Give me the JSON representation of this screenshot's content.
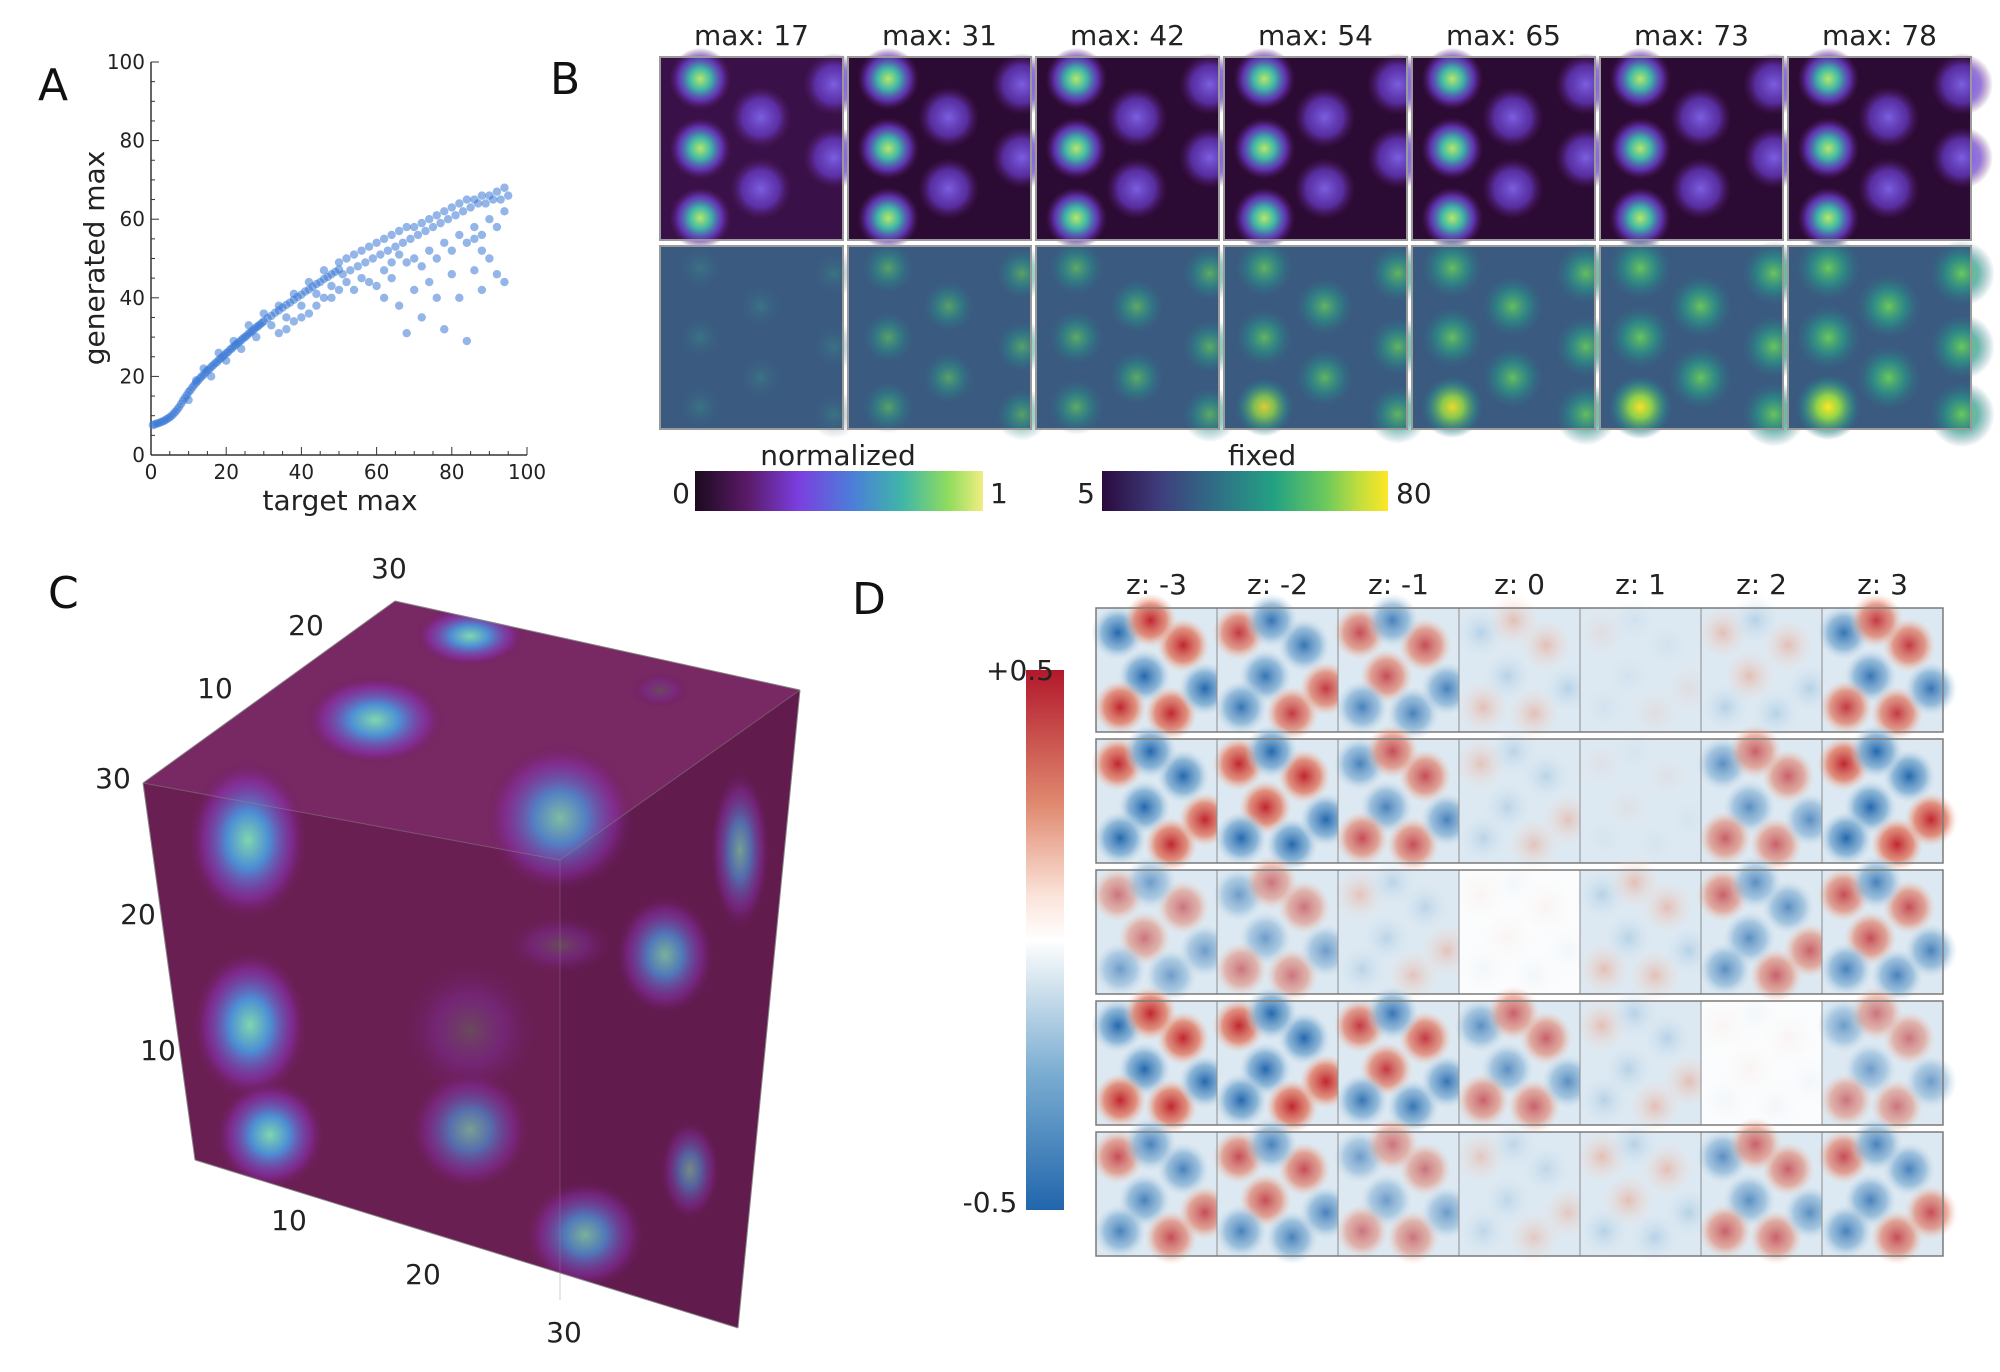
{
  "panels": {
    "A": {
      "letter": "A"
    },
    "B": {
      "letter": "B"
    },
    "C": {
      "letter": "C"
    },
    "D": {
      "letter": "D"
    }
  },
  "chart_data": [
    {
      "type": "scatter",
      "panel": "A",
      "xlabel": "target max",
      "ylabel": "generated max",
      "xlim": [
        0,
        100
      ],
      "ylim": [
        0,
        100
      ],
      "xticks": [
        0,
        20,
        40,
        60,
        80,
        100
      ],
      "yticks": [
        0,
        20,
        40,
        60,
        80,
        100
      ],
      "grid": false,
      "color": "#3a78d6",
      "points": [
        [
          0.5,
          7.6
        ],
        [
          1,
          7.8
        ],
        [
          1.5,
          8
        ],
        [
          2,
          8.1
        ],
        [
          2.5,
          8.3
        ],
        [
          3,
          8.5
        ],
        [
          3.5,
          8.7
        ],
        [
          4,
          9
        ],
        [
          4.5,
          9.3
        ],
        [
          5,
          9.6
        ],
        [
          5.5,
          10
        ],
        [
          6,
          10.5
        ],
        [
          6.5,
          11
        ],
        [
          7,
          11.6
        ],
        [
          7.5,
          12.2
        ],
        [
          8,
          13
        ],
        [
          8.5,
          13.8
        ],
        [
          9,
          14.5
        ],
        [
          9.5,
          15.2
        ],
        [
          10,
          16
        ],
        [
          10.5,
          16.5
        ],
        [
          11,
          17.2
        ],
        [
          11.5,
          17.8
        ],
        [
          12,
          18.4
        ],
        [
          12.5,
          18.9
        ],
        [
          13,
          19.5
        ],
        [
          13.5,
          20
        ],
        [
          14,
          20.4
        ],
        [
          14.5,
          21
        ],
        [
          15,
          21.5
        ],
        [
          15.5,
          21.8
        ],
        [
          16,
          22.4
        ],
        [
          16.5,
          22.8
        ],
        [
          17,
          23.3
        ],
        [
          17.5,
          23.6
        ],
        [
          18,
          24.2
        ],
        [
          18.5,
          24.5
        ],
        [
          19,
          25
        ],
        [
          19.5,
          25.4
        ],
        [
          20,
          25.9
        ],
        [
          20.5,
          26.2
        ],
        [
          21,
          26.8
        ],
        [
          21.5,
          27.1
        ],
        [
          22,
          27.6
        ],
        [
          22.5,
          28
        ],
        [
          23,
          28.4
        ],
        [
          23.5,
          28.8
        ],
        [
          24,
          29.2
        ],
        [
          24.5,
          29.7
        ],
        [
          25,
          30
        ],
        [
          25.5,
          30.4
        ],
        [
          26,
          30.9
        ],
        [
          26.5,
          31.2
        ],
        [
          27,
          31.6
        ],
        [
          27.5,
          32
        ],
        [
          28,
          32.5
        ],
        [
          28.5,
          32.8
        ],
        [
          29,
          33.2
        ],
        [
          29.5,
          33.6
        ],
        [
          30,
          34
        ],
        [
          31,
          34.8
        ],
        [
          32,
          35.4
        ],
        [
          33,
          36.2
        ],
        [
          34,
          36.8
        ],
        [
          35,
          37.5
        ],
        [
          36,
          38.2
        ],
        [
          37,
          38.8
        ],
        [
          38,
          39.5
        ],
        [
          39,
          40.2
        ],
        [
          40,
          40.8
        ],
        [
          41,
          41.6
        ],
        [
          42,
          42.1
        ],
        [
          43,
          42.8
        ],
        [
          44,
          43.5
        ],
        [
          45,
          44
        ],
        [
          46,
          44.8
        ],
        [
          47,
          45.3
        ],
        [
          48,
          46
        ],
        [
          49,
          46.6
        ],
        [
          50,
          47.2
        ],
        [
          10,
          14
        ],
        [
          12,
          19
        ],
        [
          14,
          22
        ],
        [
          16,
          20
        ],
        [
          18,
          26
        ],
        [
          20,
          24
        ],
        [
          22,
          29
        ],
        [
          24,
          27
        ],
        [
          26,
          33
        ],
        [
          28,
          30
        ],
        [
          30,
          36
        ],
        [
          32,
          33
        ],
        [
          34,
          38
        ],
        [
          36,
          35
        ],
        [
          38,
          41
        ],
        [
          40,
          38
        ],
        [
          42,
          44
        ],
        [
          44,
          41
        ],
        [
          46,
          47
        ],
        [
          48,
          43
        ],
        [
          50,
          49
        ],
        [
          51,
          46
        ],
        [
          52,
          50
        ],
        [
          53,
          47
        ],
        [
          54,
          51
        ],
        [
          55,
          48
        ],
        [
          56,
          52
        ],
        [
          57,
          49
        ],
        [
          58,
          53
        ],
        [
          59,
          50
        ],
        [
          60,
          54
        ],
        [
          61,
          51
        ],
        [
          62,
          55
        ],
        [
          63,
          52
        ],
        [
          64,
          56
        ],
        [
          65,
          53
        ],
        [
          66,
          57
        ],
        [
          67,
          54
        ],
        [
          68,
          58
        ],
        [
          69,
          55
        ],
        [
          70,
          58
        ],
        [
          71,
          56
        ],
        [
          72,
          59
        ],
        [
          73,
          57
        ],
        [
          74,
          60
        ],
        [
          75,
          58
        ],
        [
          76,
          61
        ],
        [
          77,
          59
        ],
        [
          78,
          62
        ],
        [
          79,
          60
        ],
        [
          80,
          63
        ],
        [
          81,
          61
        ],
        [
          82,
          64
        ],
        [
          83,
          62
        ],
        [
          84,
          65
        ],
        [
          85,
          63
        ],
        [
          86,
          65
        ],
        [
          87,
          64
        ],
        [
          88,
          66
        ],
        [
          89,
          64
        ],
        [
          90,
          66
        ],
        [
          91,
          65
        ],
        [
          92,
          67
        ],
        [
          93,
          65
        ],
        [
          94,
          68
        ],
        [
          95,
          66
        ],
        [
          60,
          43
        ],
        [
          62,
          40
        ],
        [
          64,
          45
        ],
        [
          66,
          38
        ],
        [
          68,
          31
        ],
        [
          70,
          42
        ],
        [
          72,
          35
        ],
        [
          74,
          44
        ],
        [
          76,
          40
        ],
        [
          78,
          32
        ],
        [
          80,
          46
        ],
        [
          82,
          40
        ],
        [
          84,
          29
        ],
        [
          86,
          47
        ],
        [
          88,
          42
        ],
        [
          90,
          50
        ],
        [
          92,
          46
        ],
        [
          94,
          44
        ],
        [
          86,
          55
        ],
        [
          88,
          52
        ],
        [
          70,
          50
        ],
        [
          72,
          48
        ],
        [
          74,
          52
        ],
        [
          76,
          50
        ],
        [
          78,
          54
        ],
        [
          80,
          52
        ],
        [
          82,
          56
        ],
        [
          84,
          54
        ],
        [
          86,
          58
        ],
        [
          88,
          56
        ],
        [
          90,
          60
        ],
        [
          92,
          58
        ],
        [
          94,
          62
        ],
        [
          62,
          47
        ],
        [
          64,
          49
        ],
        [
          66,
          51
        ],
        [
          68,
          49
        ],
        [
          58,
          44
        ],
        [
          56,
          45
        ],
        [
          54,
          42
        ],
        [
          52,
          44
        ],
        [
          50,
          42
        ],
        [
          48,
          40
        ],
        [
          46,
          40
        ],
        [
          44,
          38
        ],
        [
          42,
          36
        ],
        [
          40,
          35
        ],
        [
          38,
          34
        ],
        [
          36,
          32
        ],
        [
          34,
          31
        ]
      ]
    },
    {
      "type": "heatmap",
      "panel": "B",
      "columns": [
        "max: 17",
        "max: 31",
        "max: 42",
        "max: 54",
        "max: 65",
        "max: 73",
        "max: 78"
      ],
      "max_values": [
        17,
        31,
        42,
        54,
        65,
        73,
        78
      ],
      "rows": [
        "normalized",
        "fixed"
      ],
      "colorbars": [
        {
          "name": "normalized",
          "min": "0",
          "max": "1",
          "stops": [
            "#1b0a1e",
            "#5a1a66",
            "#7b3fe0",
            "#4b7fd8",
            "#3fb6a8",
            "#8fdc5e",
            "#f0ee80"
          ]
        },
        {
          "name": "fixed",
          "min": "5",
          "max": "80",
          "stops": [
            "#2a0a3e",
            "#3e3d7c",
            "#2f6f86",
            "#23a183",
            "#6bc95c",
            "#c2de3d",
            "#fde724"
          ]
        }
      ]
    },
    {
      "type": "heatmap",
      "panel": "C",
      "description_axes": {
        "ticks_top": [
          "10",
          "20",
          "30"
        ],
        "ticks_left": [
          "30",
          "20",
          "10"
        ],
        "ticks_bottom": [
          "10",
          "20",
          "30"
        ]
      }
    },
    {
      "type": "heatmap",
      "panel": "D",
      "columns": [
        "z: -3",
        "z: -2",
        "z: -1",
        "z: 0",
        "z: 1",
        "z: 2",
        "z: 3"
      ],
      "z_values": [
        -3,
        -2,
        -1,
        0,
        1,
        2,
        3
      ],
      "row_count": 5,
      "colorbar": {
        "max": "+0.5",
        "min": "-0.5",
        "stops": [
          "#b2182b",
          "#e08a70",
          "#fbe4da",
          "#ffffff",
          "#d4e4ef",
          "#79acd1",
          "#2166ac"
        ]
      }
    }
  ]
}
